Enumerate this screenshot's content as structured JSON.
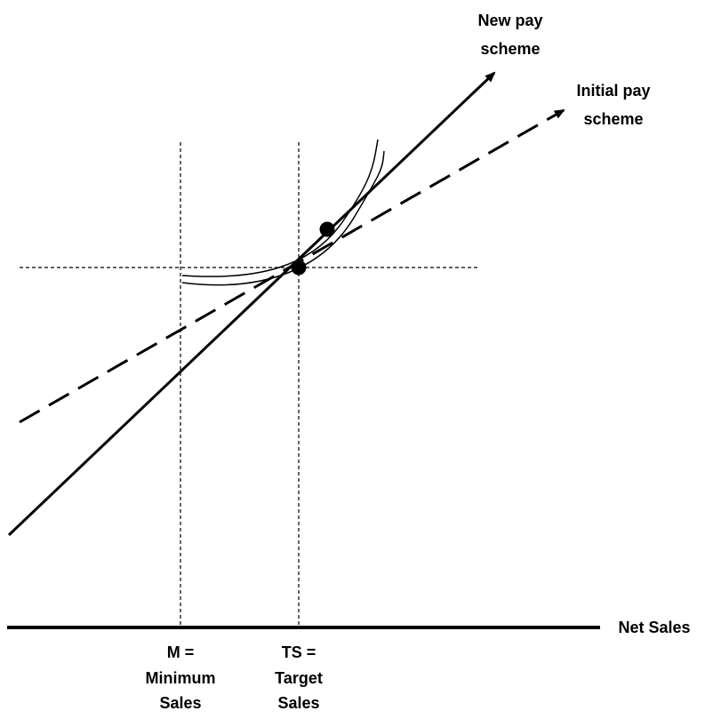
{
  "labels": {
    "new_pay_line1": "New pay",
    "new_pay_line2": "scheme",
    "initial_pay_line1": "Initial pay",
    "initial_pay_line2": "scheme",
    "x_axis": "Net Sales",
    "m_line1": "M =",
    "m_line2": "Minimum",
    "m_line3": "Sales",
    "ts_line1": "TS =",
    "ts_line2": "Target",
    "ts_line3": "Sales"
  },
  "colors": {
    "ink": "#000000",
    "background": "#ffffff"
  }
}
